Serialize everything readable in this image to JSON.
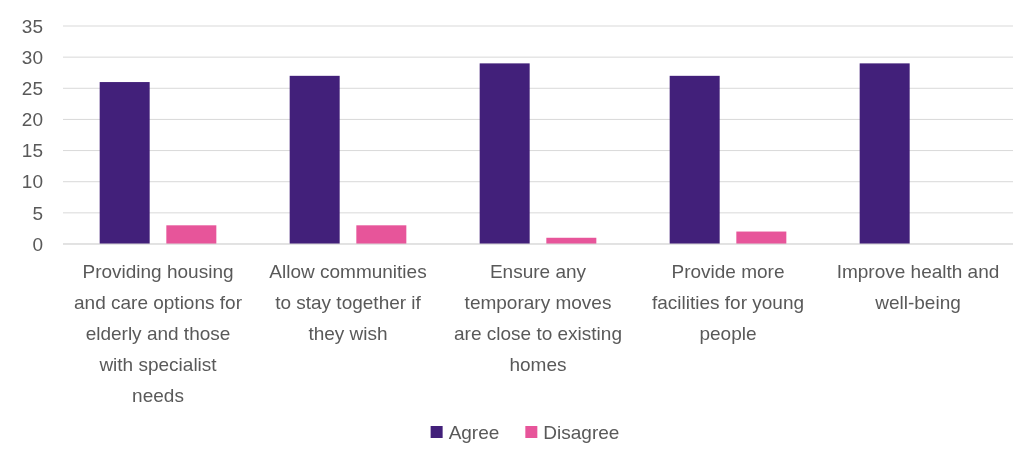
{
  "chart_data": {
    "type": "bar",
    "categories": [
      "Providing housing and care options for elderly and those with specialist needs",
      "Allow communities to stay together if they wish",
      "Ensure any temporary moves are close to existing homes",
      "Provide more facilities for young people",
      "Improve health and well-being"
    ],
    "series": [
      {
        "name": "Agree",
        "color": "#42207a",
        "values": [
          26,
          27,
          29,
          27,
          29
        ]
      },
      {
        "name": "Disagree",
        "color": "#e7559a",
        "values": [
          3,
          3,
          1,
          2,
          0
        ]
      }
    ],
    "ylim": [
      0,
      35
    ],
    "yticks": [
      0,
      5,
      10,
      15,
      20,
      25,
      30,
      35
    ],
    "grid": "y",
    "legend": "bottom"
  }
}
